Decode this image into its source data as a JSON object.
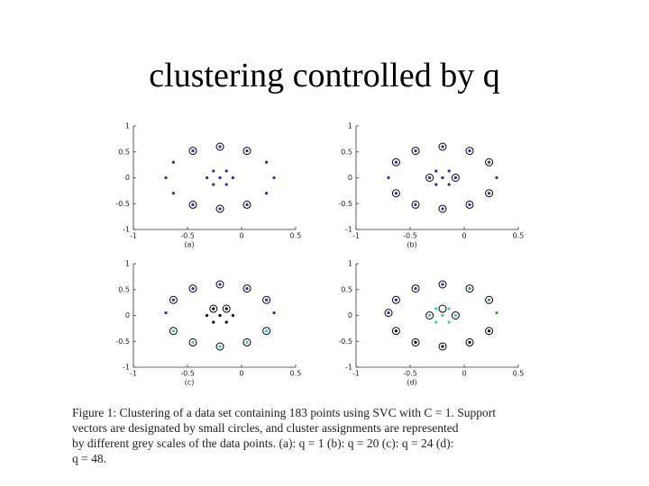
{
  "title": "clustering controlled by q",
  "chart_data": [
    {
      "type": "scatter",
      "label": "(a)",
      "xlim": [
        -1,
        0.5
      ],
      "ylim": [
        -1,
        1
      ],
      "xticks": [
        -1,
        -0.5,
        0,
        0.5
      ],
      "yticks": [
        -1,
        -0.5,
        0,
        0.5,
        1
      ],
      "series": [
        {
          "color": "#2b2bb0",
          "marker": "dot",
          "x": [
            0.3,
            0.23,
            0.05,
            -0.2,
            -0.45,
            -0.63,
            -0.7,
            -0.63,
            -0.45,
            -0.2,
            0.05,
            0.23,
            -0.08,
            -0.14,
            -0.26,
            -0.32,
            -0.26,
            -0.14,
            -0.2
          ],
          "y": [
            0,
            0.3,
            0.52,
            0.6,
            0.52,
            0.3,
            0,
            -0.3,
            -0.52,
            -0.6,
            -0.52,
            -0.3,
            0,
            0.13,
            0.13,
            0,
            -0.13,
            -0.13,
            0
          ]
        },
        {
          "color": "#000000",
          "marker": "circle",
          "x": [
            0.05,
            -0.2,
            -0.45,
            -0.45,
            -0.2,
            0.05
          ],
          "y": [
            0.52,
            0.6,
            0.52,
            -0.52,
            -0.6,
            -0.52
          ]
        }
      ]
    },
    {
      "type": "scatter",
      "label": "(b)",
      "xlim": [
        -1,
        0.5
      ],
      "ylim": [
        -1,
        1
      ],
      "xticks": [
        -1,
        -0.5,
        0,
        0.5
      ],
      "yticks": [
        -1,
        -0.5,
        0,
        0.5,
        1
      ],
      "series": [
        {
          "color": "#2b2bb0",
          "marker": "dot",
          "x": [
            0.3,
            0.23,
            0.05,
            -0.2,
            -0.45,
            -0.63,
            -0.7,
            -0.63,
            -0.45,
            -0.2,
            0.05,
            0.23,
            -0.08,
            -0.14,
            -0.26,
            -0.32,
            -0.26,
            -0.14,
            -0.2
          ],
          "y": [
            0,
            0.3,
            0.52,
            0.6,
            0.52,
            0.3,
            0,
            -0.3,
            -0.52,
            -0.6,
            -0.52,
            -0.3,
            0,
            0.13,
            0.13,
            0,
            -0.13,
            -0.13,
            0
          ]
        },
        {
          "color": "#000000",
          "marker": "circle",
          "x": [
            0.23,
            0.05,
            -0.2,
            -0.45,
            -0.63,
            -0.63,
            -0.45,
            -0.2,
            0.05,
            0.23,
            -0.08,
            -0.32
          ],
          "y": [
            0.3,
            0.52,
            0.6,
            0.52,
            0.3,
            -0.3,
            -0.52,
            -0.6,
            -0.52,
            -0.3,
            0,
            0
          ]
        }
      ]
    },
    {
      "type": "scatter",
      "label": "(c)",
      "xlim": [
        -1,
        0.5
      ],
      "ylim": [
        -1,
        1
      ],
      "xticks": [
        -1,
        -0.5,
        0,
        0.5
      ],
      "yticks": [
        -1,
        -0.5,
        0,
        0.5,
        1
      ],
      "series": [
        {
          "color": "#2b2bb0",
          "marker": "dot",
          "x": [
            0.3,
            0.23,
            0.05,
            -0.2,
            -0.45,
            -0.63,
            -0.7
          ],
          "y": [
            0.05,
            0.3,
            0.52,
            0.6,
            0.52,
            0.3,
            0.05
          ]
        },
        {
          "color": "#40c0d0",
          "marker": "dot",
          "x": [
            -0.63,
            -0.45,
            -0.2,
            0.05,
            0.23
          ],
          "y": [
            -0.3,
            -0.52,
            -0.6,
            -0.52,
            -0.3
          ]
        },
        {
          "color": "#000000",
          "marker": "dot",
          "x": [
            -0.08,
            -0.14,
            -0.26,
            -0.32,
            -0.26,
            -0.14,
            -0.2
          ],
          "y": [
            0,
            0.13,
            0.13,
            0,
            -0.13,
            -0.13,
            0
          ]
        },
        {
          "color": "#000000",
          "marker": "circle",
          "x": [
            0.23,
            0.05,
            -0.2,
            -0.45,
            -0.63,
            -0.63,
            -0.45,
            -0.2,
            0.05,
            0.23,
            -0.14,
            -0.26
          ],
          "y": [
            0.3,
            0.52,
            0.6,
            0.52,
            0.3,
            -0.3,
            -0.52,
            -0.6,
            -0.52,
            -0.3,
            0.13,
            0.13
          ]
        }
      ]
    },
    {
      "type": "scatter",
      "label": "(d)",
      "xlim": [
        -1,
        0.5
      ],
      "ylim": [
        -1,
        1
      ],
      "xticks": [
        -1,
        -0.5,
        0,
        0.5
      ],
      "yticks": [
        -1,
        -0.5,
        0,
        0.5,
        1
      ],
      "series": [
        {
          "color": "#2b2bb0",
          "marker": "dot",
          "x": [
            -0.2,
            -0.45,
            -0.63,
            -0.7
          ],
          "y": [
            0.6,
            0.52,
            0.3,
            0.05
          ]
        },
        {
          "color": "#3aa050",
          "marker": "dot",
          "x": [
            0.3,
            0.23,
            0.05
          ],
          "y": [
            0.05,
            0.3,
            0.52
          ]
        },
        {
          "color": "#40c0d0",
          "marker": "dot",
          "x": [
            -0.08,
            -0.14,
            -0.26,
            -0.32,
            -0.26,
            -0.14,
            -0.2
          ],
          "y": [
            0,
            0.13,
            0.13,
            0,
            -0.13,
            -0.13,
            0
          ]
        },
        {
          "color": "#000000",
          "marker": "dot",
          "x": [
            -0.63,
            -0.45,
            -0.2,
            0.05,
            0.23
          ],
          "y": [
            -0.3,
            -0.52,
            -0.6,
            -0.52,
            -0.3
          ]
        },
        {
          "color": "#000000",
          "marker": "circle",
          "x": [
            0.23,
            0.05,
            -0.2,
            -0.45,
            -0.63,
            -0.7,
            -0.63,
            -0.45,
            -0.2,
            0.05,
            0.23,
            -0.08,
            -0.32,
            -0.2
          ],
          "y": [
            0.3,
            0.52,
            0.6,
            0.52,
            0.3,
            0.05,
            -0.3,
            -0.52,
            -0.6,
            -0.52,
            -0.3,
            0,
            0,
            0.13
          ]
        }
      ]
    }
  ],
  "caption": [
    "Figure 1: Clustering of a data set containing 183 points using SVC with C = 1. Support",
    "vectors are designated by small circles, and cluster assignments are represented",
    "by different grey scales of the data points. (a): q = 1 (b): q = 20 (c): q = 24 (d):",
    "q = 48."
  ]
}
